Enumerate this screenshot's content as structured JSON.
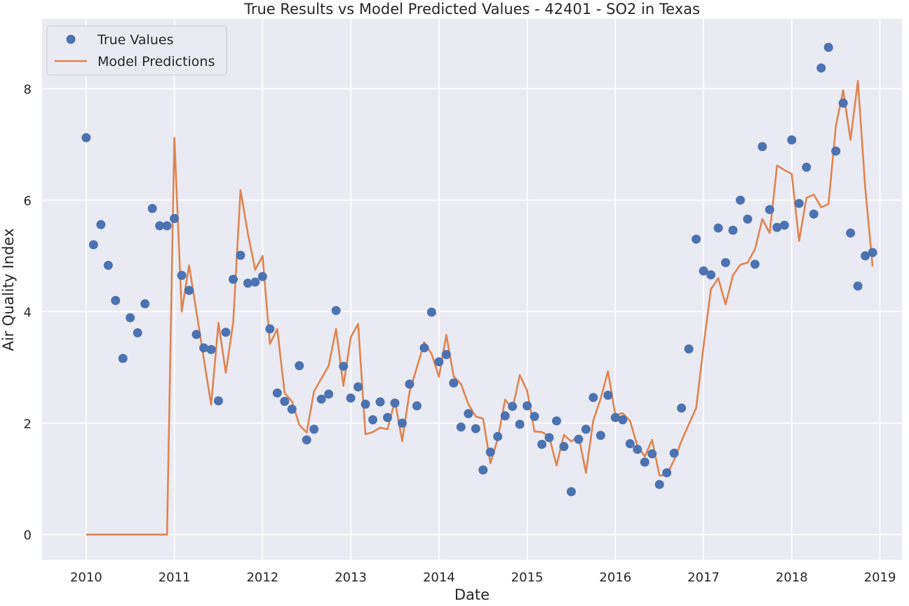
{
  "chart_data": {
    "type": "line",
    "title": "True Results vs Model Predicted Values - 42401 - SO2 in Texas",
    "xlabel": "Date",
    "ylabel": "Air Quality Index",
    "x_ticks": [
      "2010",
      "2011",
      "2012",
      "2013",
      "2014",
      "2015",
      "2016",
      "2017",
      "2018",
      "2019"
    ],
    "y_ticks": [
      "0",
      "2",
      "4",
      "6",
      "8"
    ],
    "xlim": [
      "2009-07",
      "2019-04"
    ],
    "ylim": [
      -0.45,
      9.25
    ],
    "grid": true,
    "legend_position": "top-left",
    "x": [
      "2010-01",
      "2010-02",
      "2010-03",
      "2010-04",
      "2010-05",
      "2010-06",
      "2010-07",
      "2010-08",
      "2010-09",
      "2010-10",
      "2010-11",
      "2010-12",
      "2011-01",
      "2011-02",
      "2011-03",
      "2011-04",
      "2011-05",
      "2011-06",
      "2011-07",
      "2011-08",
      "2011-09",
      "2011-10",
      "2011-11",
      "2011-12",
      "2012-01",
      "2012-02",
      "2012-03",
      "2012-04",
      "2012-05",
      "2012-06",
      "2012-07",
      "2012-08",
      "2012-09",
      "2012-10",
      "2012-11",
      "2012-12",
      "2013-01",
      "2013-02",
      "2013-03",
      "2013-04",
      "2013-05",
      "2013-06",
      "2013-07",
      "2013-08",
      "2013-09",
      "2013-10",
      "2013-11",
      "2013-12",
      "2014-01",
      "2014-02",
      "2014-03",
      "2014-04",
      "2014-05",
      "2014-06",
      "2014-07",
      "2014-08",
      "2014-09",
      "2014-10",
      "2014-11",
      "2014-12",
      "2015-01",
      "2015-02",
      "2015-03",
      "2015-04",
      "2015-05",
      "2015-06",
      "2015-07",
      "2015-08",
      "2015-09",
      "2015-10",
      "2015-11",
      "2015-12",
      "2016-01",
      "2016-02",
      "2016-03",
      "2016-04",
      "2016-05",
      "2016-06",
      "2016-07",
      "2016-08",
      "2016-09",
      "2016-10",
      "2016-11",
      "2016-12",
      "2017-01",
      "2017-02",
      "2017-03",
      "2017-04",
      "2017-05",
      "2017-06",
      "2017-07",
      "2017-08",
      "2017-09",
      "2017-10",
      "2017-11",
      "2017-12",
      "2018-01",
      "2018-02",
      "2018-03",
      "2018-04",
      "2018-05",
      "2018-06",
      "2018-07",
      "2018-08",
      "2018-09",
      "2018-10",
      "2018-11",
      "2018-12"
    ],
    "series": [
      {
        "name": "True Values",
        "style": "scatter",
        "color": "#4c72b0",
        "values": [
          7.12,
          5.2,
          5.56,
          4.83,
          4.2,
          3.16,
          3.89,
          3.62,
          4.14,
          5.85,
          5.54,
          5.54,
          5.67,
          4.65,
          4.38,
          3.59,
          3.35,
          3.32,
          2.4,
          3.63,
          4.58,
          5.01,
          4.51,
          4.53,
          4.63,
          3.69,
          2.54,
          2.39,
          2.25,
          3.03,
          1.7,
          1.89,
          2.43,
          2.52,
          4.02,
          3.02,
          2.45,
          2.65,
          2.34,
          2.06,
          2.38,
          2.1,
          2.36,
          2.0,
          2.7,
          2.31,
          3.35,
          3.99,
          3.1,
          3.23,
          2.72,
          1.93,
          2.17,
          1.9,
          1.16,
          1.48,
          1.76,
          2.13,
          2.3,
          1.98,
          2.31,
          2.12,
          1.62,
          1.74,
          2.04,
          1.58,
          0.77,
          1.71,
          1.89,
          2.46,
          1.78,
          2.5,
          2.1,
          2.06,
          1.63,
          1.53,
          1.3,
          1.45,
          0.9,
          1.11,
          1.46,
          2.27,
          3.33,
          5.3,
          4.73,
          4.66,
          5.5,
          4.88,
          5.46,
          6.0,
          5.66,
          4.85,
          6.96,
          5.83,
          5.51,
          5.55,
          7.08,
          5.94,
          6.59,
          5.75,
          8.37,
          8.74,
          6.88,
          7.74,
          5.41,
          4.46,
          5.0,
          5.06
        ]
      },
      {
        "name": "Model Predictions",
        "style": "line",
        "color": "#dd8452",
        "values": [
          0,
          0,
          0,
          0,
          0,
          0,
          0,
          0,
          0,
          0,
          0,
          0,
          7.12,
          4.0,
          4.83,
          4.0,
          3.16,
          2.33,
          3.8,
          2.9,
          3.8,
          6.18,
          5.4,
          4.75,
          5.0,
          3.42,
          3.69,
          2.54,
          2.39,
          1.97,
          1.83,
          2.57,
          2.8,
          3.03,
          3.69,
          2.67,
          3.54,
          3.78,
          1.8,
          1.84,
          1.92,
          1.89,
          2.4,
          1.68,
          2.56,
          3.0,
          3.45,
          3.24,
          2.83,
          3.58,
          2.84,
          2.7,
          2.34,
          2.12,
          2.08,
          1.28,
          1.72,
          2.42,
          2.25,
          2.86,
          2.58,
          1.85,
          1.84,
          1.76,
          1.24,
          1.79,
          1.67,
          1.77,
          1.11,
          2.05,
          2.44,
          2.93,
          2.14,
          2.18,
          2.04,
          1.59,
          1.4,
          1.7,
          1.06,
          1.07,
          1.34,
          1.68,
          1.98,
          2.27,
          3.38,
          4.4,
          4.6,
          4.13,
          4.65,
          4.84,
          4.88,
          5.12,
          5.66,
          5.41,
          6.62,
          6.54,
          6.47,
          5.27,
          6.04,
          6.1,
          5.87,
          5.93,
          7.33,
          7.97,
          7.08,
          8.14,
          6.22,
          4.81
        ]
      }
    ]
  }
}
